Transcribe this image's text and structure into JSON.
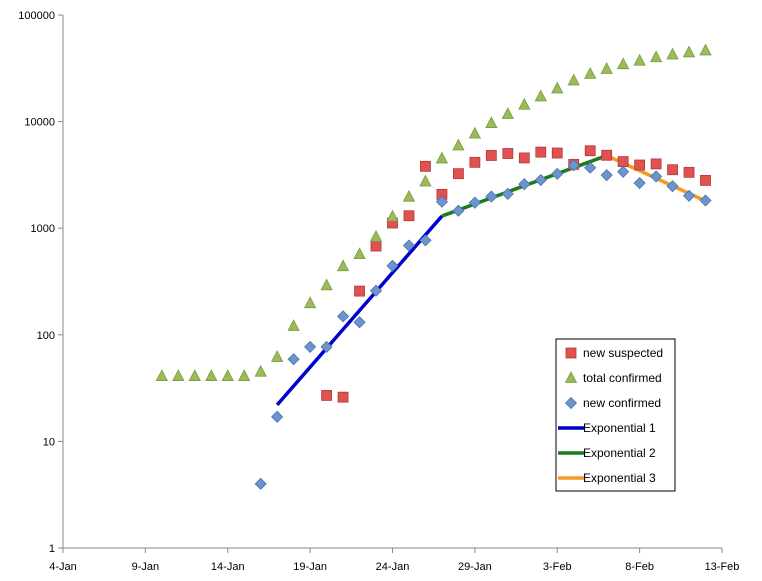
{
  "chart_data": {
    "type": "scatter",
    "title": "",
    "xlabel": "",
    "ylabel": "",
    "y_scale": "log",
    "ylim": [
      1,
      100000
    ],
    "xlim": [
      "2020-01-04",
      "2020-02-13"
    ],
    "grid": false,
    "legend_position": "right",
    "x_tick_labels": [
      "4-Jan",
      "9-Jan",
      "14-Jan",
      "19-Jan",
      "24-Jan",
      "29-Jan",
      "3-Feb",
      "8-Feb",
      "13-Feb"
    ],
    "y_tick_labels": [
      "1",
      "10",
      "100",
      "1000",
      "10000",
      "100000"
    ],
    "series": [
      {
        "name": "new suspected",
        "marker": "square",
        "color": "#e0514f",
        "points": [
          [
            "2020-01-20",
            27
          ],
          [
            "2020-01-21",
            26
          ],
          [
            "2020-01-22",
            257
          ],
          [
            "2020-01-23",
            680
          ],
          [
            "2020-01-24",
            1118
          ],
          [
            "2020-01-25",
            1309
          ],
          [
            "2020-01-26",
            3806
          ],
          [
            "2020-01-27",
            2077
          ],
          [
            "2020-01-28",
            3248
          ],
          [
            "2020-01-29",
            4148
          ],
          [
            "2020-01-30",
            4812
          ],
          [
            "2020-01-31",
            5019
          ],
          [
            "2020-02-01",
            4562
          ],
          [
            "2020-02-02",
            5173
          ],
          [
            "2020-02-03",
            5072
          ],
          [
            "2020-02-04",
            3971
          ],
          [
            "2020-02-05",
            5328
          ],
          [
            "2020-02-06",
            4833
          ],
          [
            "2020-02-07",
            4214
          ],
          [
            "2020-02-08",
            3916
          ],
          [
            "2020-02-09",
            4008
          ],
          [
            "2020-02-10",
            3536
          ],
          [
            "2020-02-11",
            3342
          ],
          [
            "2020-02-12",
            2807
          ]
        ]
      },
      {
        "name": "total confirmed",
        "marker": "triangle",
        "color": "#9bbb59",
        "points": [
          [
            "2020-01-10",
            41
          ],
          [
            "2020-01-11",
            41
          ],
          [
            "2020-01-12",
            41
          ],
          [
            "2020-01-13",
            41
          ],
          [
            "2020-01-14",
            41
          ],
          [
            "2020-01-15",
            41
          ],
          [
            "2020-01-16",
            45
          ],
          [
            "2020-01-17",
            62
          ],
          [
            "2020-01-18",
            121
          ],
          [
            "2020-01-19",
            198
          ],
          [
            "2020-01-20",
            291
          ],
          [
            "2020-01-21",
            440
          ],
          [
            "2020-01-22",
            571
          ],
          [
            "2020-01-23",
            830
          ],
          [
            "2020-01-24",
            1287
          ],
          [
            "2020-01-25",
            1975
          ],
          [
            "2020-01-26",
            2744
          ],
          [
            "2020-01-27",
            4515
          ],
          [
            "2020-01-28",
            5974
          ],
          [
            "2020-01-29",
            7711
          ],
          [
            "2020-01-30",
            9692
          ],
          [
            "2020-01-31",
            11791
          ],
          [
            "2020-02-01",
            14380
          ],
          [
            "2020-02-02",
            17205
          ],
          [
            "2020-02-03",
            20438
          ],
          [
            "2020-02-04",
            24324
          ],
          [
            "2020-02-05",
            28018
          ],
          [
            "2020-02-06",
            31161
          ],
          [
            "2020-02-07",
            34546
          ],
          [
            "2020-02-08",
            37198
          ],
          [
            "2020-02-09",
            40171
          ],
          [
            "2020-02-10",
            42638
          ],
          [
            "2020-02-11",
            44653
          ],
          [
            "2020-02-12",
            46500
          ]
        ]
      },
      {
        "name": "new confirmed",
        "marker": "diamond",
        "color": "#6c95cf",
        "points": [
          [
            "2020-01-16",
            4
          ],
          [
            "2020-01-17",
            17
          ],
          [
            "2020-01-18",
            59
          ],
          [
            "2020-01-19",
            77
          ],
          [
            "2020-01-20",
            77
          ],
          [
            "2020-01-21",
            149
          ],
          [
            "2020-01-22",
            131
          ],
          [
            "2020-01-23",
            259
          ],
          [
            "2020-01-24",
            444
          ],
          [
            "2020-01-25",
            688
          ],
          [
            "2020-01-26",
            769
          ],
          [
            "2020-01-27",
            1771
          ],
          [
            "2020-01-28",
            1459
          ],
          [
            "2020-01-29",
            1737
          ],
          [
            "2020-01-30",
            1981
          ],
          [
            "2020-01-31",
            2099
          ],
          [
            "2020-02-01",
            2590
          ],
          [
            "2020-02-02",
            2829
          ],
          [
            "2020-02-03",
            3235
          ],
          [
            "2020-02-04",
            3887
          ],
          [
            "2020-02-05",
            3694
          ],
          [
            "2020-02-06",
            3143
          ],
          [
            "2020-02-07",
            3385
          ],
          [
            "2020-02-08",
            2652
          ],
          [
            "2020-02-09",
            3062
          ],
          [
            "2020-02-10",
            2478
          ],
          [
            "2020-02-11",
            2015
          ],
          [
            "2020-02-12",
            1820
          ]
        ]
      },
      {
        "name": "Exponential 1",
        "marker": "line",
        "color": "#0000cc",
        "points": [
          [
            "2020-01-17",
            22
          ],
          [
            "2020-01-27",
            1300
          ]
        ]
      },
      {
        "name": "Exponential 2",
        "marker": "line",
        "color": "#1e7b1e",
        "points": [
          [
            "2020-01-27",
            1300
          ],
          [
            "2020-02-06",
            4800
          ]
        ]
      },
      {
        "name": "Exponential 3",
        "marker": "line",
        "color": "#f59a23",
        "points": [
          [
            "2020-02-06",
            4800
          ],
          [
            "2020-02-12",
            1800
          ]
        ]
      }
    ]
  }
}
